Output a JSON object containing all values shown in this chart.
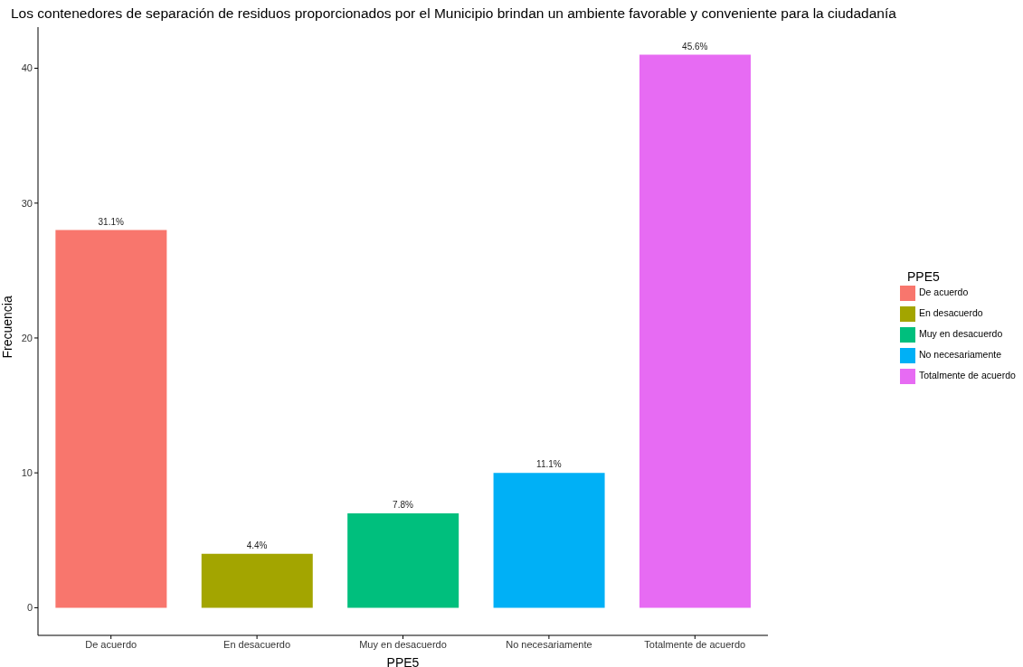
{
  "chart_data": {
    "type": "bar",
    "title": "Los contenedores de separación de residuos proporcionados por el Municipio brindan un ambiente favorable y conveniente para la ciudadanía",
    "xlabel": "PPE5",
    "ylabel": "Frecuencia",
    "legend_title": "PPE5",
    "categories": [
      "De acuerdo",
      "En desacuerdo",
      "Muy en desacuerdo",
      "No necesariamente",
      "Totalmente de acuerdo"
    ],
    "stacked": true,
    "series": [
      {
        "name": "De acuerdo",
        "color": "#f8766d",
        "values": [
          28,
          null,
          null,
          null,
          null
        ]
      },
      {
        "name": "En desacuerdo",
        "color": "#a3a500",
        "values": [
          null,
          4,
          null,
          null,
          null
        ]
      },
      {
        "name": "Muy en desacuerdo",
        "color": "#00bf7d",
        "values": [
          null,
          null,
          7,
          null,
          null
        ]
      },
      {
        "name": "No necesariamente",
        "color": "#00b0f6",
        "values": [
          null,
          null,
          null,
          10,
          null
        ]
      },
      {
        "name": "Totalmente de acuerdo",
        "color": "#e76bf3",
        "values": [
          null,
          null,
          null,
          null,
          41
        ]
      }
    ],
    "annotations": [
      {
        "text": "31.1%",
        "x": "De acuerdo",
        "y": 28
      },
      {
        "text": "4.4%",
        "x": "En desacuerdo",
        "y": 4
      },
      {
        "text": "7.8%",
        "x": "Muy en desacuerdo",
        "y": 7
      },
      {
        "text": "11.1%",
        "x": "No necesariamente",
        "y": 10
      },
      {
        "text": "45.6%",
        "x": "Totalmente de acuerdo",
        "y": 41
      }
    ],
    "ylim": [
      -2.05,
      43.05
    ],
    "yticks": [
      0,
      10,
      20,
      30,
      40
    ],
    "grid": false,
    "legend": "right"
  }
}
